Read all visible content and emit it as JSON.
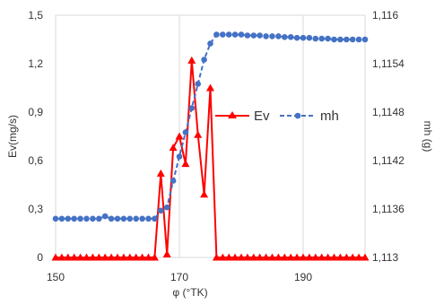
{
  "chart_data": {
    "type": "line",
    "title": "",
    "xlabel": "φ (°TK)",
    "ylabel_left": "Ev(mg/s)",
    "ylabel_right": "mh (g)",
    "xlim": [
      150,
      200
    ],
    "ylim_left": [
      0,
      1.5
    ],
    "ylim_right": [
      1.113,
      1.116
    ],
    "grid": "vertical",
    "legend_placement": "center-right",
    "x_ticks": [
      {
        "value": 150,
        "label": "150"
      },
      {
        "value": 170,
        "label": "170"
      },
      {
        "value": 190,
        "label": "190"
      }
    ],
    "y_ticks_left": [
      {
        "value": 0,
        "label": "0"
      },
      {
        "value": 0.3,
        "label": "0,3"
      },
      {
        "value": 0.6,
        "label": "0,6"
      },
      {
        "value": 0.9,
        "label": "0,9"
      },
      {
        "value": 1.2,
        "label": "1,2"
      },
      {
        "value": 1.5,
        "label": "1,5"
      }
    ],
    "y_ticks_right": [
      {
        "value": 1.113,
        "label": "1,113"
      },
      {
        "value": 1.1136,
        "label": "1,1136"
      },
      {
        "value": 1.1142,
        "label": "1,1142"
      },
      {
        "value": 1.1148,
        "label": "1,1148"
      },
      {
        "value": 1.1154,
        "label": "1,1154"
      },
      {
        "value": 1.116,
        "label": "1,116"
      }
    ],
    "series": [
      {
        "name": "Ev",
        "axis": "left",
        "color": "#ff0000",
        "marker": "triangle",
        "line_style": "solid",
        "x": [
          150,
          151,
          152,
          153,
          154,
          155,
          156,
          157,
          158,
          159,
          160,
          161,
          162,
          163,
          164,
          165,
          166,
          167,
          168,
          169,
          170,
          171,
          172,
          173,
          174,
          175,
          176,
          177,
          178,
          179,
          180,
          181,
          182,
          183,
          184,
          185,
          186,
          187,
          188,
          189,
          190,
          191,
          192,
          193,
          194,
          195,
          196,
          197,
          198,
          199,
          200
        ],
        "y": [
          0,
          0,
          0,
          0,
          0,
          0,
          0,
          0,
          0,
          0,
          0,
          0,
          0,
          0,
          0,
          0,
          0,
          0.52,
          0.02,
          0.68,
          0.75,
          0.58,
          1.22,
          0.76,
          0.39,
          1.05,
          0,
          0,
          0,
          0,
          0,
          0,
          0,
          0,
          0,
          0,
          0,
          0,
          0,
          0,
          0,
          0,
          0,
          0,
          0,
          0,
          0,
          0,
          0,
          0,
          0
        ]
      },
      {
        "name": "mh",
        "axis": "right",
        "color": "#4472c4",
        "marker": "circle",
        "line_style": "dashed",
        "x": [
          150,
          151,
          152,
          153,
          154,
          155,
          156,
          157,
          158,
          159,
          160,
          161,
          162,
          163,
          164,
          165,
          166,
          167,
          168,
          169,
          170,
          171,
          172,
          173,
          174,
          175,
          176,
          177,
          178,
          179,
          180,
          181,
          182,
          183,
          184,
          185,
          186,
          187,
          188,
          189,
          190,
          191,
          192,
          193,
          194,
          195,
          196,
          197,
          198,
          199,
          200
        ],
        "y": [
          1.11348,
          1.11348,
          1.11348,
          1.11348,
          1.11348,
          1.11348,
          1.11348,
          1.11348,
          1.11351,
          1.11348,
          1.11348,
          1.11348,
          1.11348,
          1.11348,
          1.11348,
          1.11348,
          1.11348,
          1.11358,
          1.11362,
          1.11395,
          1.11425,
          1.11455,
          1.11485,
          1.11515,
          1.11545,
          1.11565,
          1.11576,
          1.11576,
          1.11576,
          1.11576,
          1.11576,
          1.11575,
          1.11575,
          1.11575,
          1.11574,
          1.11574,
          1.11574,
          1.11573,
          1.11573,
          1.11572,
          1.11572,
          1.11572,
          1.11571,
          1.11571,
          1.11571,
          1.1157,
          1.1157,
          1.1157,
          1.1157,
          1.1157,
          1.1157
        ]
      }
    ]
  }
}
